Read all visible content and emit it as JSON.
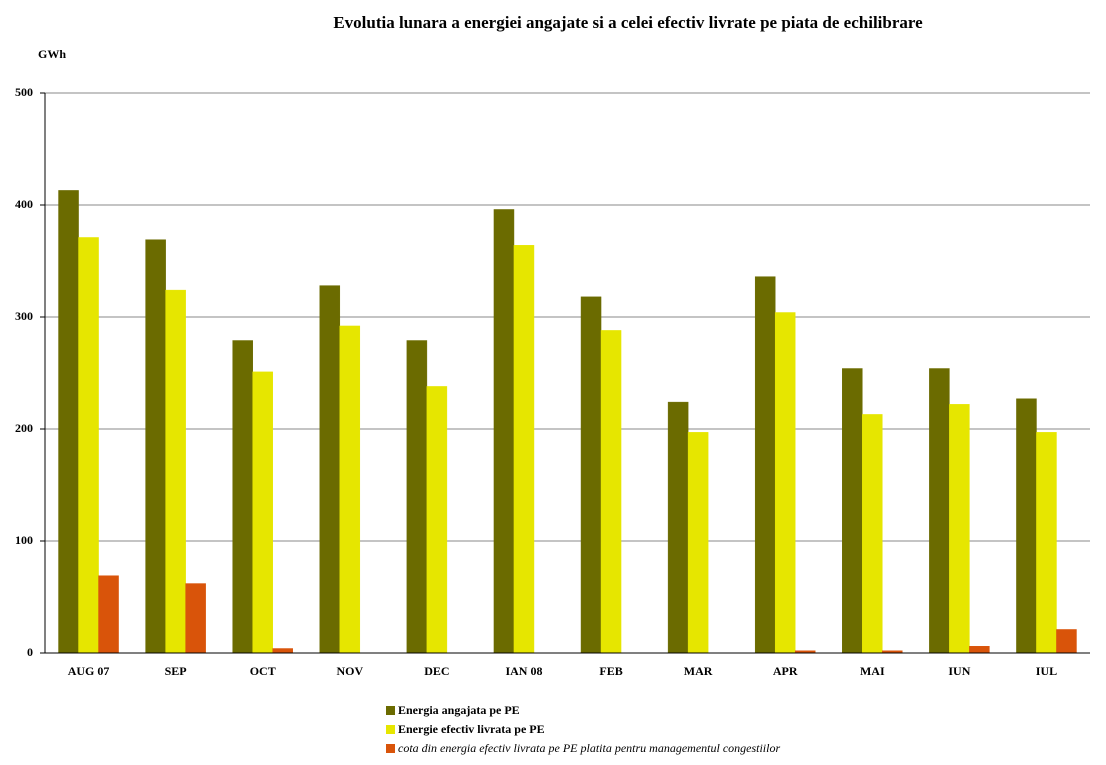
{
  "chart_data": {
    "type": "bar",
    "title": "Evolutia lunara a energiei angajate si a celei efectiv livrate pe piata de echilibrare",
    "y_label": "GWh",
    "categories": [
      "AUG 07",
      "SEP",
      "OCT",
      "NOV",
      "DEC",
      "IAN 08",
      "FEB",
      "MAR",
      "APR",
      "MAI",
      "IUN",
      "IUL"
    ],
    "series": [
      {
        "name": "Energia angajata pe PE",
        "color": "#6b6b00",
        "values": [
          413,
          369,
          279,
          328,
          279,
          396,
          318,
          224,
          336,
          254,
          254,
          227
        ]
      },
      {
        "name": "Energie efectiv livrata pe PE",
        "color": "#e6e600",
        "values": [
          371,
          324,
          251,
          292,
          238,
          364,
          288,
          197,
          304,
          213,
          222,
          197
        ]
      },
      {
        "name": "cota din energia efectiv livrata pe PE platita pentru managementul congestiilor",
        "color": "#d9540a",
        "values": [
          69,
          62,
          4,
          0,
          0,
          0,
          0,
          0,
          2,
          2,
          6,
          21
        ]
      }
    ],
    "ylim": [
      0,
      500
    ],
    "yticks": [
      0,
      100,
      200,
      300,
      400,
      500
    ],
    "grid": true
  }
}
